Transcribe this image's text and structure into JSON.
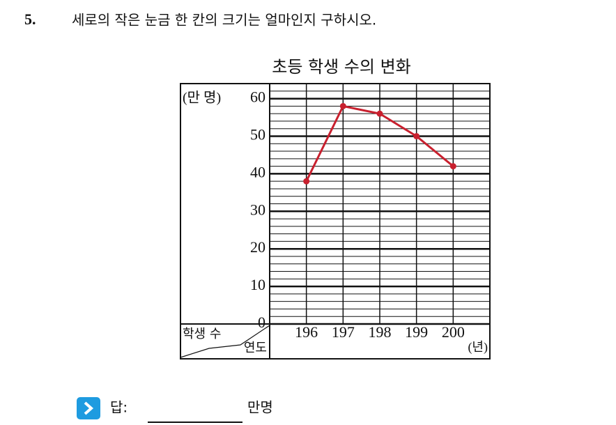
{
  "question": {
    "number": "5.",
    "text": "세로의 작은 눈금 한 칸의 크기는 얼마인지 구하시오."
  },
  "chart_data": {
    "type": "line",
    "title": "초등 학생 수의 변화",
    "y_unit": "(만 명)",
    "x_unit": "(년)",
    "row_header": "학생 수",
    "column_header": "연도",
    "categories": [
      "196",
      "197",
      "198",
      "199",
      "200"
    ],
    "values": [
      38,
      58,
      56,
      50,
      42
    ],
    "color": "#c8202e",
    "ylim": [
      0,
      64
    ],
    "yticks": [
      0,
      10,
      20,
      30,
      40,
      50,
      60
    ],
    "minor_grid_step": 2,
    "grid": true
  },
  "answer": {
    "label": "답:",
    "unit": "만명"
  }
}
